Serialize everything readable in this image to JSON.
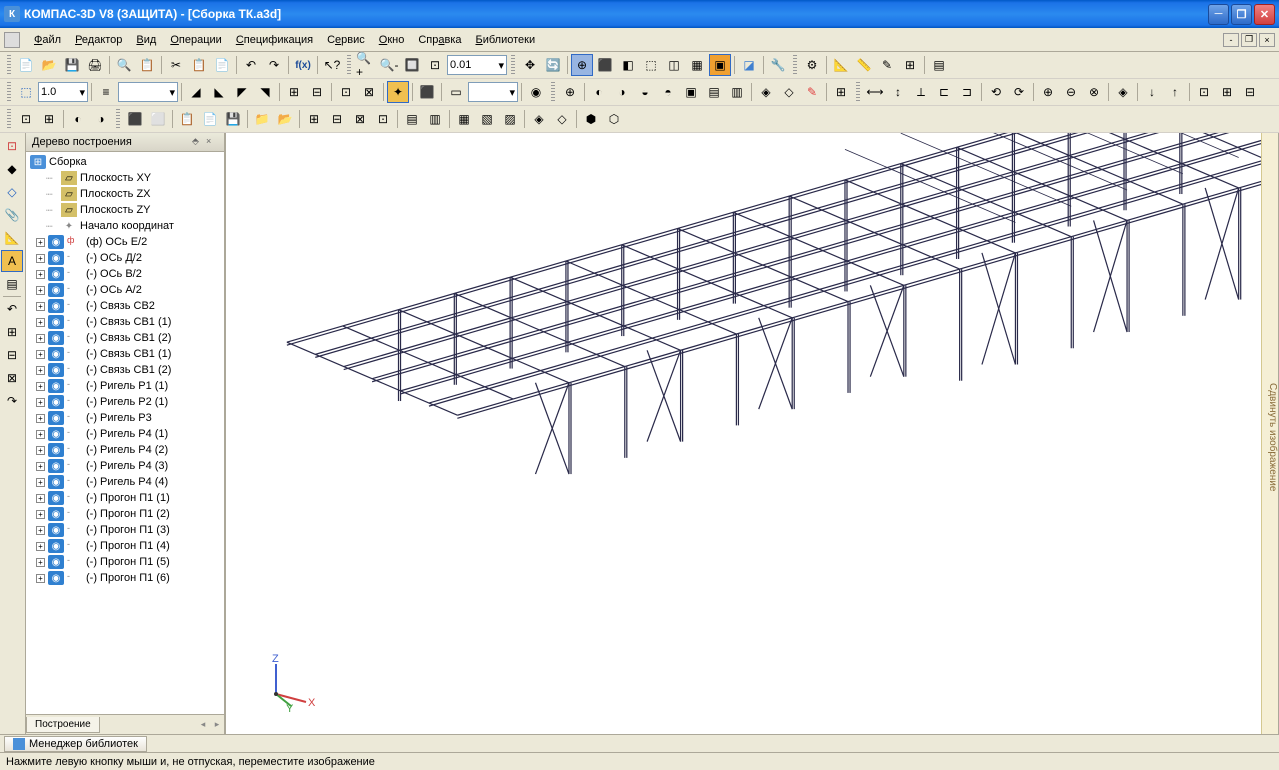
{
  "title": "КОМПАС-3D V8 (ЗАЩИТА) - [Сборка ТК.a3d]",
  "menu": {
    "file": "Файл",
    "editor": "Редактор",
    "view": "Вид",
    "operations": "Операции",
    "specification": "Спецификация",
    "service": "Сервис",
    "window": "Окно",
    "help": "Справка",
    "libraries": "Библиотеки"
  },
  "toolbar": {
    "scale_value": "1.0",
    "zoom_value": "0.01"
  },
  "tree": {
    "title": "Дерево построения",
    "root": "Сборка",
    "planes": [
      "Плоскость XY",
      "Плоскость ZX",
      "Плоскость ZY"
    ],
    "origin": "Начало координат",
    "items": [
      {
        "name": "(ф) ОСь Е/2",
        "marker": "f"
      },
      {
        "name": "(-) ОСь Д/2",
        "marker": "m"
      },
      {
        "name": "(-) ОСь В/2",
        "marker": "m"
      },
      {
        "name": "(-) ОСь А/2",
        "marker": "m"
      },
      {
        "name": "(-) Связь СВ2",
        "marker": "m"
      },
      {
        "name": "(-) Связь СВ1 (1)",
        "marker": "m"
      },
      {
        "name": "(-) Связь СВ1 (2)",
        "marker": "m"
      },
      {
        "name": "(-) Связь СВ1 (1)",
        "marker": "m"
      },
      {
        "name": "(-) Связь СВ1 (2)",
        "marker": "m"
      },
      {
        "name": "(-) Ригель Р1 (1)",
        "marker": "m"
      },
      {
        "name": "(-) Ригель Р2 (1)",
        "marker": "m"
      },
      {
        "name": "(-) Ригель Р3",
        "marker": "m"
      },
      {
        "name": "(-) Ригель Р4 (1)",
        "marker": "m"
      },
      {
        "name": "(-) Ригель Р4 (2)",
        "marker": "m"
      },
      {
        "name": "(-) Ригель Р4 (3)",
        "marker": "m"
      },
      {
        "name": "(-) Ригель Р4 (4)",
        "marker": "m"
      },
      {
        "name": "(-) Прогон П1 (1)",
        "marker": "m"
      },
      {
        "name": "(-) Прогон П1 (2)",
        "marker": "m"
      },
      {
        "name": "(-) Прогон П1 (3)",
        "marker": "m"
      },
      {
        "name": "(-) Прогон П1 (4)",
        "marker": "m"
      },
      {
        "name": "(-) Прогон П1 (5)",
        "marker": "m"
      },
      {
        "name": "(-) Прогон П1 (6)",
        "marker": "m"
      }
    ],
    "tab": "Построение"
  },
  "right_panel": "Сдвинуть изображение",
  "bottom_tab": "Менеджер библиотек",
  "status": "Нажмите левую кнопку мыши и, не отпуская, переместите изображение",
  "colors": {
    "titlebar": "#1b72e7",
    "bg": "#ece9d8",
    "structure": "#3a3a5a",
    "axis_x": "#d04040",
    "axis_y": "#40a040",
    "axis_z": "#4060d0"
  }
}
